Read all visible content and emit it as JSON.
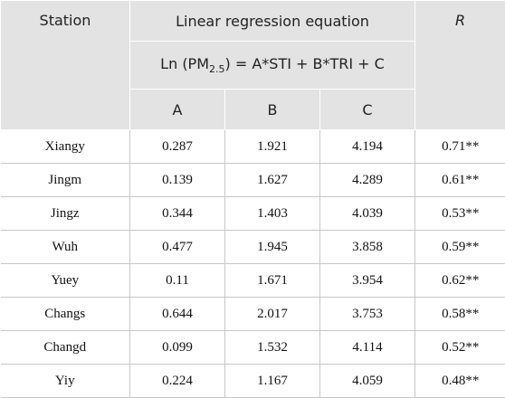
{
  "table": {
    "header": {
      "station": "Station",
      "group": "Linear regression equation",
      "equation": {
        "before": "Ln (PM",
        "sub": "2.5",
        "after": ") = A*STI + B*TRI + C"
      },
      "a": "A",
      "b": "B",
      "c": "C",
      "r": "R"
    },
    "rows": [
      [
        "Xiangy",
        "0.287",
        "1.921",
        "4.194",
        "0.71**"
      ],
      [
        "Jingm",
        "0.139",
        "1.627",
        "4.289",
        "0.61**"
      ],
      [
        "Jingz",
        "0.344",
        "1.403",
        "4.039",
        "0.53**"
      ],
      [
        "Wuh",
        "0.477",
        "1.945",
        "3.858",
        "0.59**"
      ],
      [
        "Yuey",
        "0.11",
        "1.671",
        "3.954",
        "0.62**"
      ],
      [
        "Changs",
        "0.644",
        "2.017",
        "3.753",
        "0.58**"
      ],
      [
        "Changd",
        "0.099",
        "1.532",
        "4.114",
        "0.52**"
      ],
      [
        "Yiy",
        "0.224",
        "1.167",
        "4.059",
        "0.48**"
      ]
    ]
  }
}
